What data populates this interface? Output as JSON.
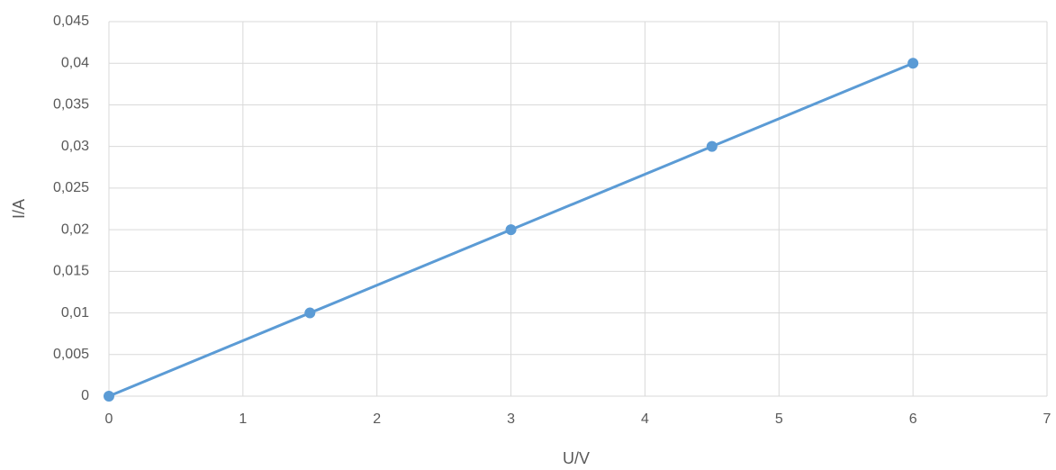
{
  "chart_data": {
    "type": "line",
    "x_label": "U/V",
    "y_label": "I/A",
    "x": [
      0,
      1.5,
      3,
      4.5,
      6
    ],
    "values": [
      0,
      0.01,
      0.02,
      0.03,
      0.04
    ],
    "color": "#5b9bd5",
    "markers": true,
    "xlim": [
      0,
      7
    ],
    "xticks": [
      0,
      1,
      2,
      3,
      4,
      5,
      6,
      7
    ],
    "ylim": [
      0,
      0.045
    ],
    "yticks": [
      0,
      {
        "value": 0.005,
        "label": "0,005"
      },
      {
        "value": 0.01,
        "label": "0,01"
      },
      {
        "value": 0.015,
        "label": "0,015"
      },
      {
        "value": 0.02,
        "label": "0,02"
      },
      {
        "value": 0.025,
        "label": "0,025"
      },
      {
        "value": 0.03,
        "label": "0,03"
      },
      {
        "value": 0.035,
        "label": "0,035"
      },
      {
        "value": 0.04,
        "label": "0,04"
      },
      {
        "value": 0.045,
        "label": "0,045"
      }
    ],
    "grid": true
  }
}
